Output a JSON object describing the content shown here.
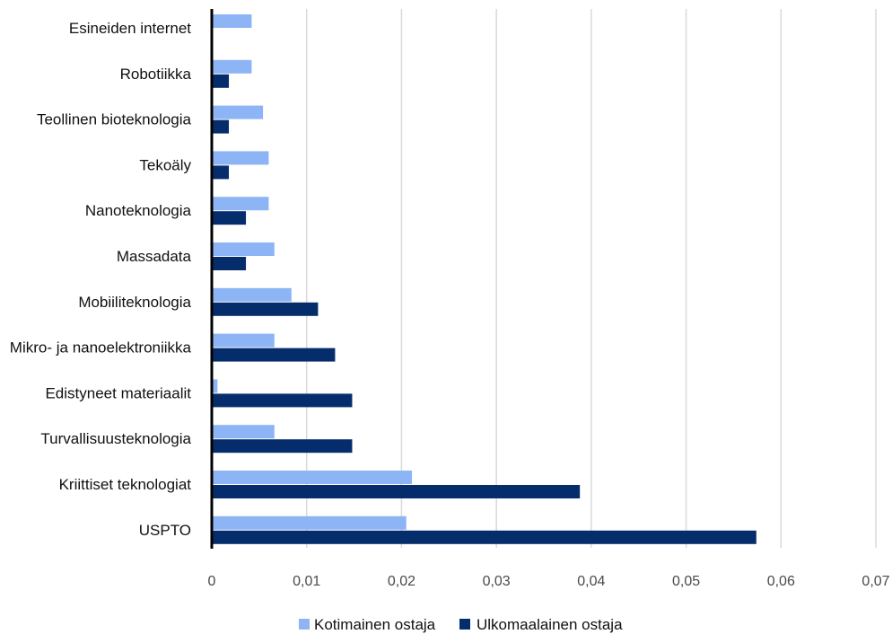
{
  "chart_data": {
    "type": "bar",
    "orientation": "horizontal",
    "title": "",
    "xlabel": "",
    "ylabel": "",
    "xlim": [
      0,
      0.07
    ],
    "grid": true,
    "legend_position": "bottom",
    "x_ticks": [
      "0",
      "0,01",
      "0,02",
      "0,03",
      "0,04",
      "0,05",
      "0,06",
      "0,07"
    ],
    "categories": [
      "Esineiden internet",
      "Robotiikka",
      "Teollinen bioteknologia",
      "Tekoäly",
      "Nanoteknologia",
      "Massadata",
      "Mobiiliteknologia",
      "Mikro- ja nanoelektroniikka",
      "Edistyneet materiaalit",
      "Turvallisuusteknologia",
      "Kriittiset teknologiat",
      "USPTO"
    ],
    "series": [
      {
        "name": "Kotimainen ostaja",
        "color": "#8db4f5",
        "values": [
          0.0042,
          0.0042,
          0.0054,
          0.006,
          0.006,
          0.0066,
          0.0084,
          0.0066,
          0.0006,
          0.0066,
          0.0211,
          0.0205
        ]
      },
      {
        "name": "Ulkomaalainen ostaja",
        "color": "#062d6b",
        "values": [
          0,
          0.0018,
          0.0018,
          0.0018,
          0.0036,
          0.0036,
          0.0112,
          0.013,
          0.0148,
          0.0148,
          0.0388,
          0.0574
        ]
      }
    ]
  }
}
